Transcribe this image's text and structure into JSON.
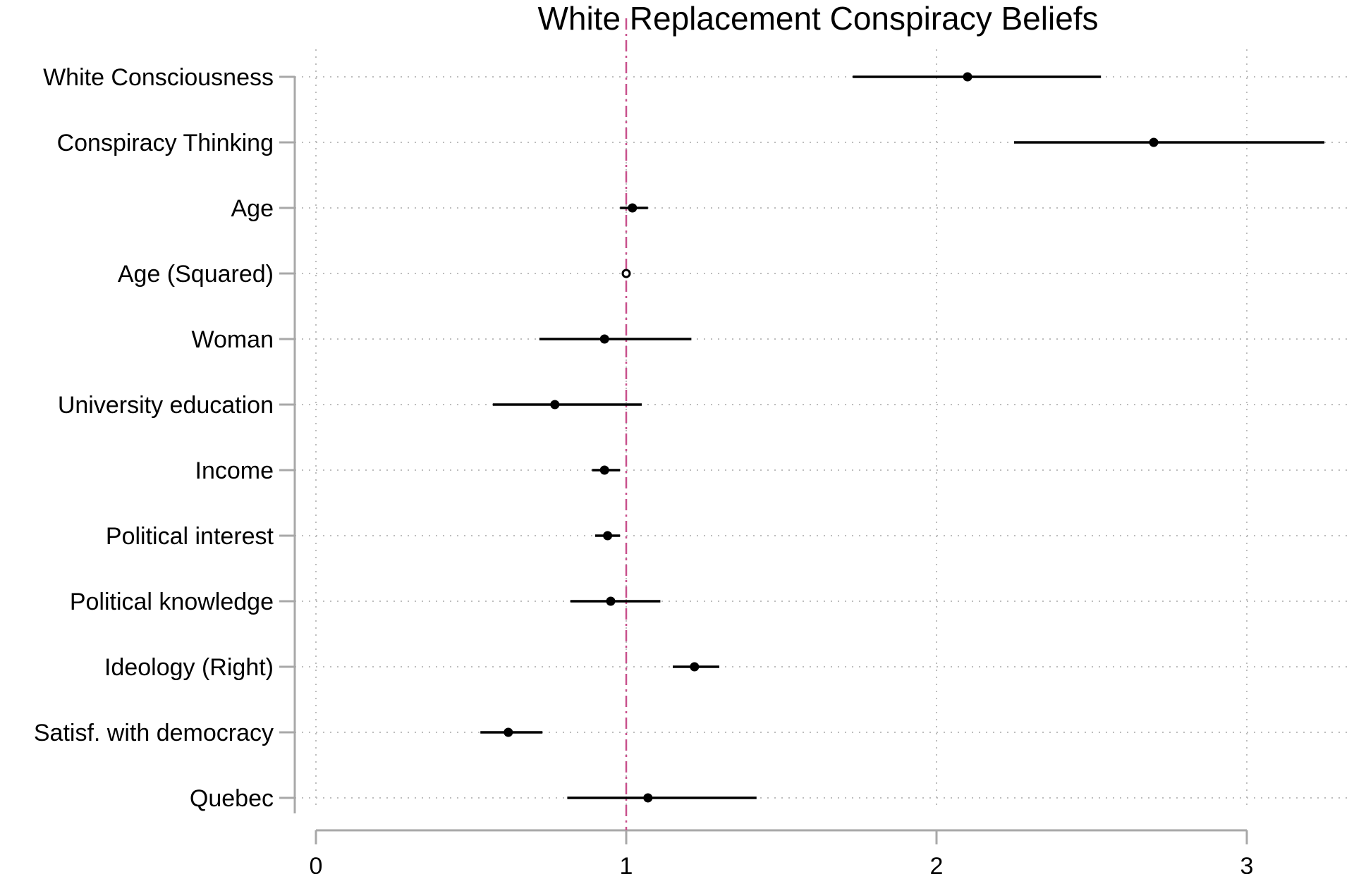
{
  "chart_data": {
    "type": "scatter",
    "title": "White Replacement Conspiracy Beliefs",
    "xlabel": "",
    "ylabel": "",
    "xlim": [
      0,
      3.3
    ],
    "xticks": [
      0,
      1,
      2,
      3
    ],
    "reference_line": {
      "x": 1,
      "style": "dash-dot",
      "color": "#c8508c"
    },
    "grid": true,
    "colors": {
      "marker": "#000000",
      "axis": "#a8a8a8",
      "grid": "#bdbdbd"
    },
    "series": [
      {
        "points": [
          {
            "label": "White Consciousness",
            "estimate": 2.1,
            "ci_low": 1.73,
            "ci_high": 2.53,
            "hollow": false
          },
          {
            "label": "Conspiracy Thinking",
            "estimate": 2.7,
            "ci_low": 2.25,
            "ci_high": 3.25,
            "hollow": false
          },
          {
            "label": "Age",
            "estimate": 1.02,
            "ci_low": 0.98,
            "ci_high": 1.07,
            "hollow": false
          },
          {
            "label": "Age (Squared)",
            "estimate": 1.0,
            "ci_low": 1.0,
            "ci_high": 1.0,
            "hollow": true
          },
          {
            "label": "Woman",
            "estimate": 0.93,
            "ci_low": 0.72,
            "ci_high": 1.21,
            "hollow": false
          },
          {
            "label": "University education",
            "estimate": 0.77,
            "ci_low": 0.57,
            "ci_high": 1.05,
            "hollow": false
          },
          {
            "label": "Income",
            "estimate": 0.93,
            "ci_low": 0.89,
            "ci_high": 0.98,
            "hollow": false
          },
          {
            "label": "Political interest",
            "estimate": 0.94,
            "ci_low": 0.9,
            "ci_high": 0.98,
            "hollow": false
          },
          {
            "label": "Political knowledge",
            "estimate": 0.95,
            "ci_low": 0.82,
            "ci_high": 1.11,
            "hollow": false
          },
          {
            "label": "Ideology (Right)",
            "estimate": 1.22,
            "ci_low": 1.15,
            "ci_high": 1.3,
            "hollow": false
          },
          {
            "label": "Satisf. with democracy",
            "estimate": 0.62,
            "ci_low": 0.53,
            "ci_high": 0.73,
            "hollow": false
          },
          {
            "label": "Quebec",
            "estimate": 1.07,
            "ci_low": 0.81,
            "ci_high": 1.42,
            "hollow": false
          }
        ]
      }
    ]
  }
}
